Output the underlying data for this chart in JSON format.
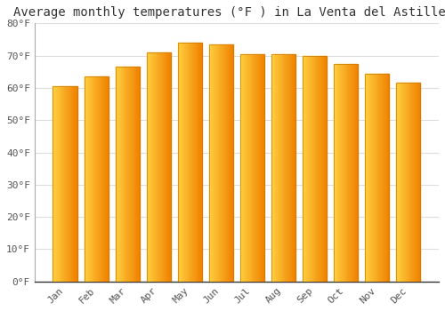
{
  "title": "Average monthly temperatures (°F ) in La Venta del Astillero",
  "months": [
    "Jan",
    "Feb",
    "Mar",
    "Apr",
    "May",
    "Jun",
    "Jul",
    "Aug",
    "Sep",
    "Oct",
    "Nov",
    "Dec"
  ],
  "values": [
    60.5,
    63.5,
    66.5,
    71,
    74,
    73.5,
    70.5,
    70.5,
    70,
    67.5,
    64.5,
    61.5
  ],
  "bar_color_left": "#FFD040",
  "bar_color_right": "#F5A000",
  "bar_edge_color": "#C87A00",
  "background_color": "#FFFFFF",
  "grid_color": "#DDDDDD",
  "ylim": [
    0,
    80
  ],
  "yticks": [
    0,
    10,
    20,
    30,
    40,
    50,
    60,
    70,
    80
  ],
  "ytick_labels": [
    "0°F",
    "10°F",
    "20°F",
    "30°F",
    "40°F",
    "50°F",
    "60°F",
    "70°F",
    "80°F"
  ],
  "title_fontsize": 10,
  "tick_fontsize": 8,
  "title_font_family": "monospace",
  "bar_width": 0.78
}
